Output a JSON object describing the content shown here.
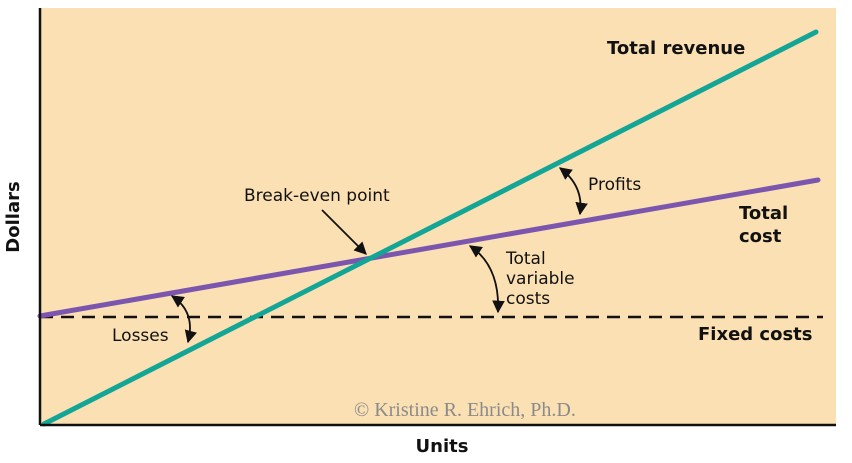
{
  "colors": {
    "background": "#fae0b3",
    "total_revenue": "#13a596",
    "total_cost": "#7b55ae",
    "fixed_costs": "#111111",
    "axis": "#111111"
  },
  "axes": {
    "x_title": "Units",
    "y_title": "Dollars"
  },
  "labels": {
    "total_revenue": "Total revenue",
    "total_cost_line1": "Total",
    "total_cost_line2": "cost",
    "fixed_costs": "Fixed costs",
    "break_even": "Break-even point",
    "profits": "Profits",
    "losses": "Losses",
    "tvc_line1": "Total",
    "tvc_line2": "variable",
    "tvc_line3": "costs"
  },
  "credit": "© Kristine R. Ehrich, Ph.D."
}
